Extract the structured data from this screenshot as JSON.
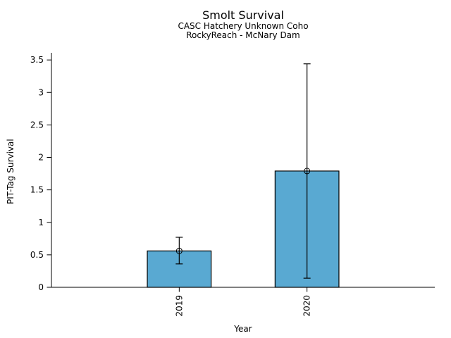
{
  "chart_data": {
    "type": "bar",
    "title": "Smolt Survival",
    "subtitle1": "CASC Hatchery Unknown Coho",
    "subtitle2": "RockyReach - McNary Dam",
    "xlabel": "Year",
    "ylabel": "PIT-Tag Survival",
    "categories": [
      "2019",
      "2020"
    ],
    "values": [
      0.56,
      1.79
    ],
    "error_low": [
      0.36,
      0.14
    ],
    "error_high": [
      0.77,
      3.44
    ],
    "yticks": [
      0,
      0.5,
      1,
      1.5,
      2,
      2.5,
      3,
      3.5
    ],
    "ylim": [
      0,
      3.61
    ],
    "xtick_rotation_deg": 90,
    "grid": false,
    "legend": "none",
    "marker": "open-circle",
    "colors": {
      "bar_fill": "#59A9D2",
      "bar_edge": "#000000",
      "error_bar": "#000000",
      "marker_edge": "#000000",
      "axis": "#000000",
      "text": "#000000",
      "background": "#ffffff"
    }
  }
}
